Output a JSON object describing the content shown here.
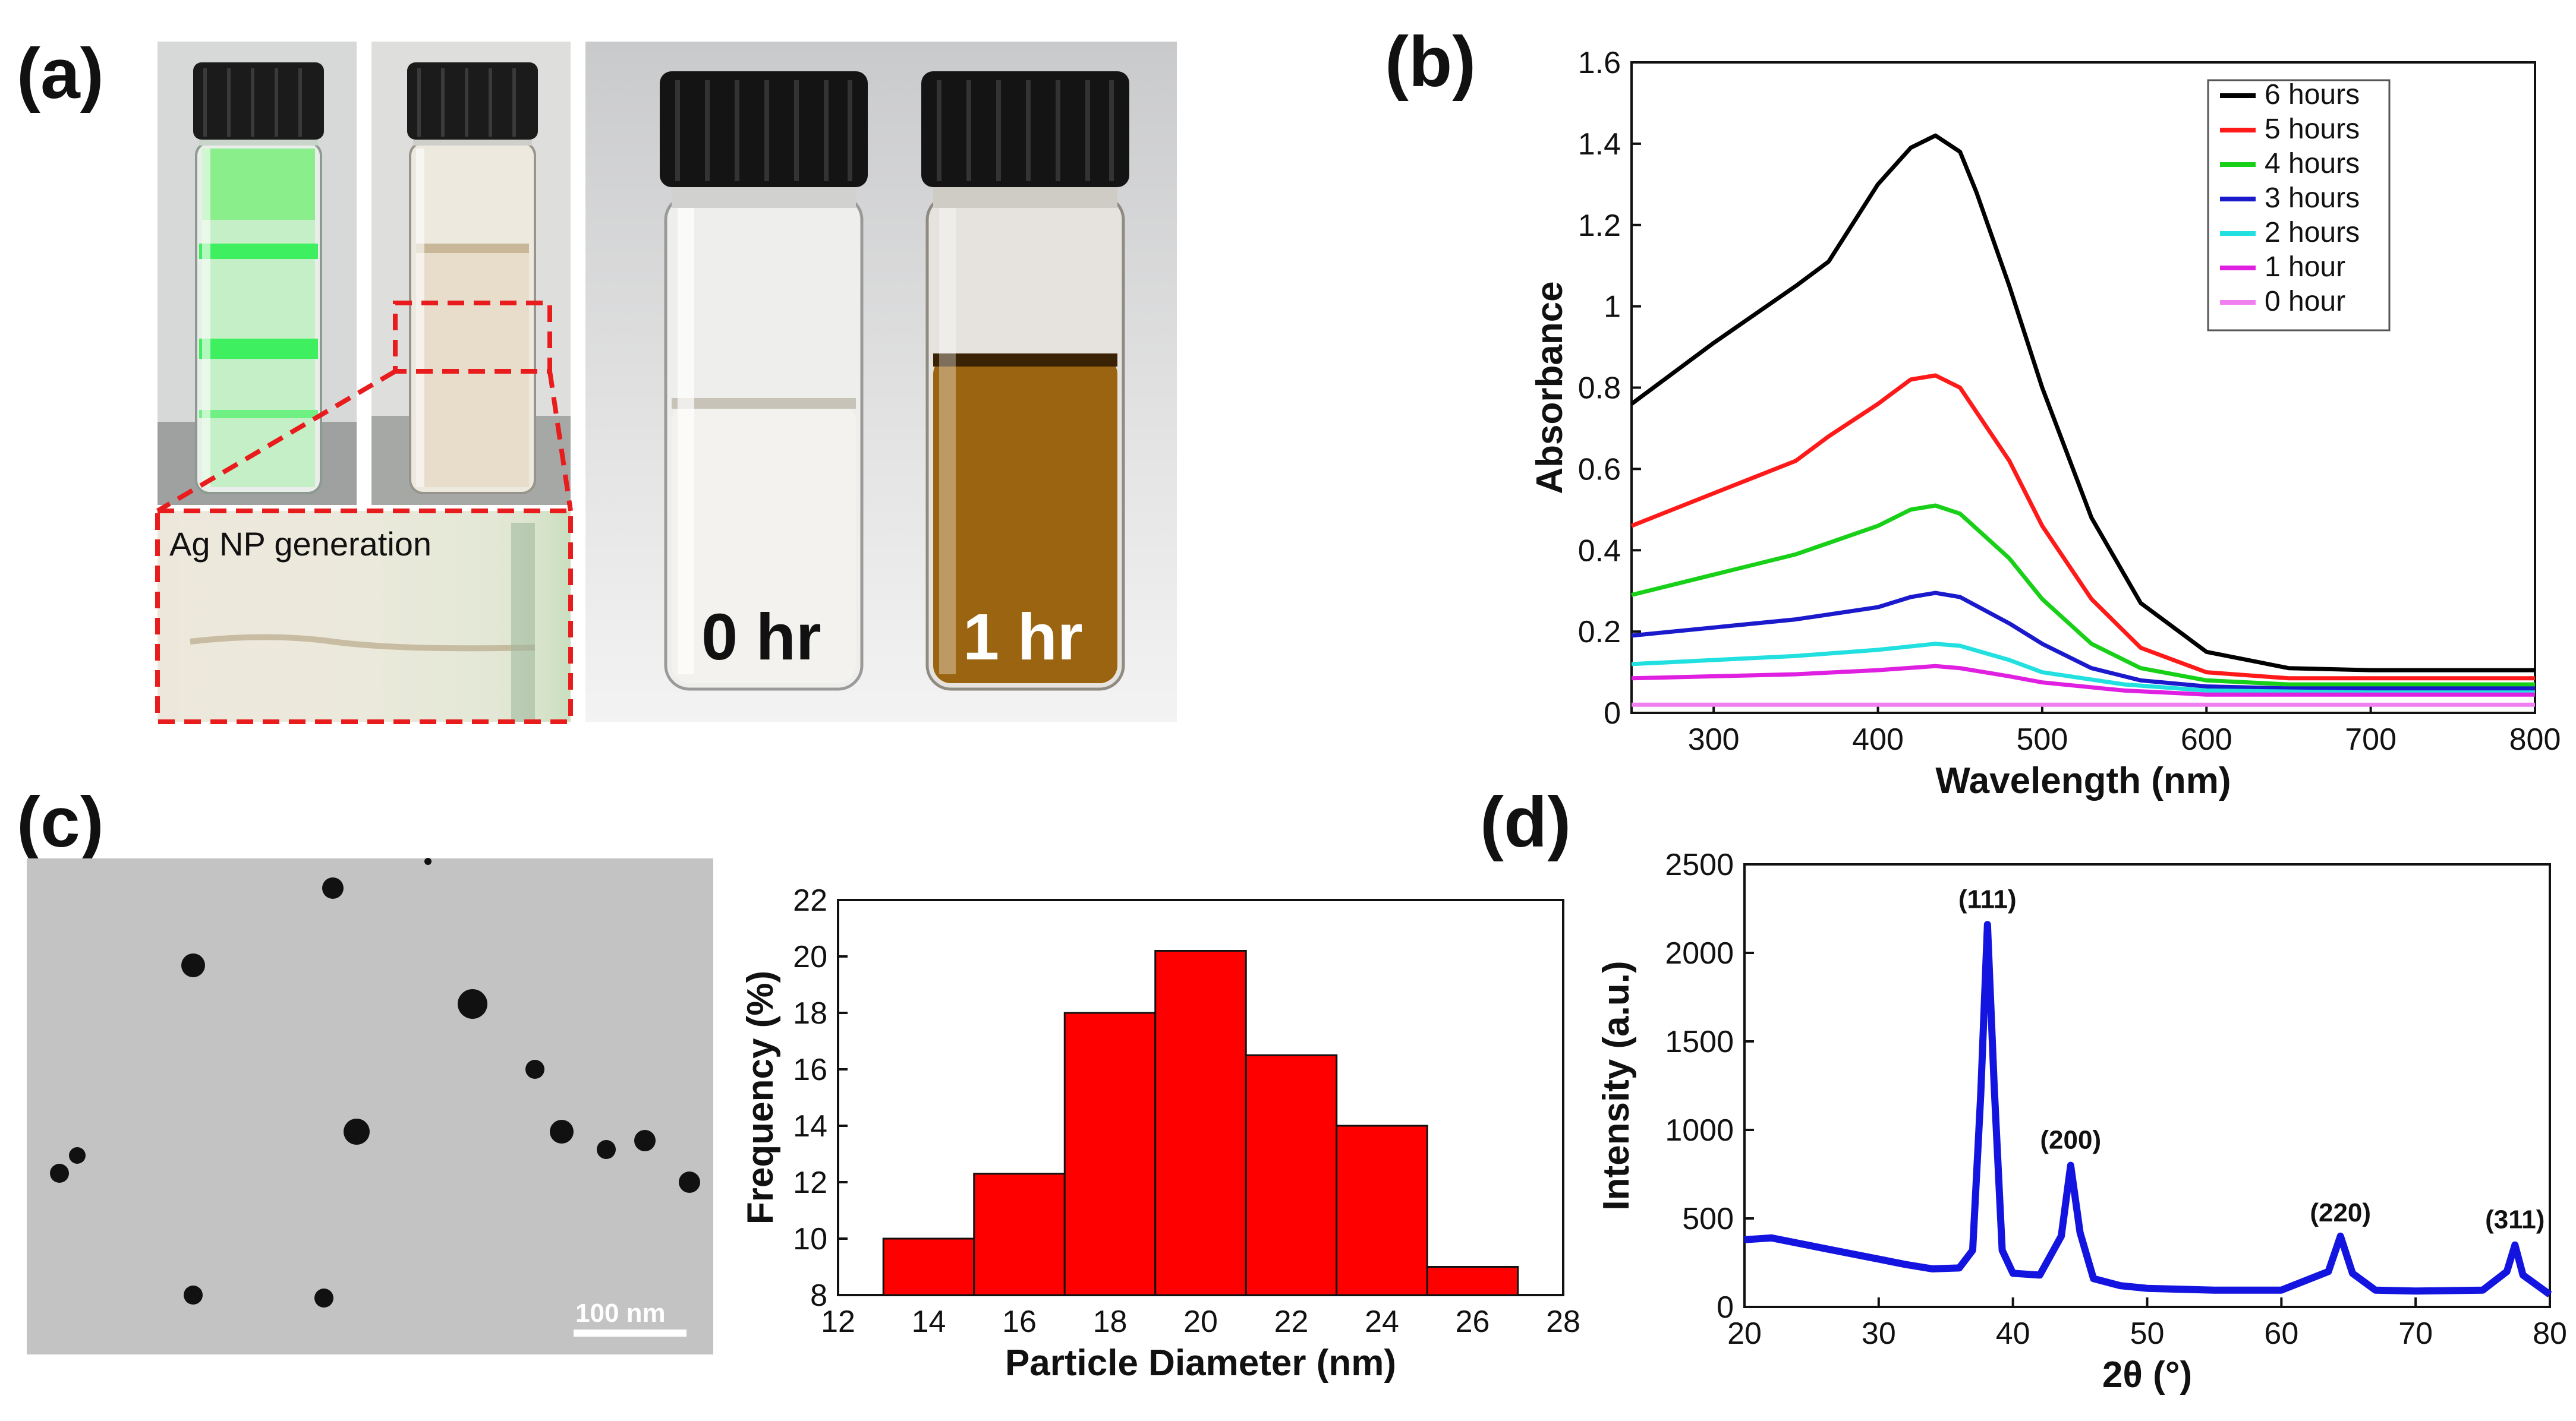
{
  "panels": {
    "a": {
      "label": "(a)",
      "inset_text": "Ag NP generation",
      "vial_labels": [
        "0 hr",
        "1 hr"
      ]
    },
    "b": {
      "label": "(b)"
    },
    "c": {
      "label": "(c)",
      "scale_bar": "100 nm"
    },
    "d": {
      "label": "(d)"
    }
  },
  "colors": {
    "series": [
      "#000000",
      "#ff1a1a",
      "#18d018",
      "#1a1acc",
      "#22e0e0",
      "#e020e0",
      "#f080f0"
    ],
    "histogram_fill": "#ff0000",
    "xrd_line": "#1414e0",
    "amber": "#9a6410",
    "green_laser": "#3ef060",
    "dashed_red": "#e81c1c"
  },
  "chart_data": [
    {
      "panel": "b",
      "type": "line",
      "xlabel": "Wavelength (nm)",
      "ylabel": "Absorbance",
      "xlim": [
        250,
        800
      ],
      "ylim": [
        0,
        1.6
      ],
      "xticks": [
        300,
        400,
        500,
        600,
        700,
        800
      ],
      "yticks": [
        0,
        0.2,
        0.4,
        0.6,
        0.8,
        1,
        1.2,
        1.4,
        1.6
      ],
      "ytick_labels": [
        "0",
        "0.2",
        "0.4",
        "0.6",
        "0.8",
        "1",
        "1.2",
        "1.4",
        "1.6"
      ],
      "legend_position": "top-right",
      "series": [
        {
          "name": "6 hours",
          "x": [
            250,
            300,
            350,
            370,
            400,
            420,
            435,
            450,
            460,
            480,
            500,
            530,
            560,
            600,
            650,
            700,
            800
          ],
          "y": [
            0.76,
            0.91,
            1.05,
            1.11,
            1.3,
            1.39,
            1.42,
            1.38,
            1.28,
            1.05,
            0.8,
            0.48,
            0.27,
            0.15,
            0.11,
            0.105,
            0.105
          ]
        },
        {
          "name": "5 hours",
          "x": [
            250,
            300,
            350,
            370,
            400,
            420,
            435,
            450,
            480,
            500,
            530,
            560,
            600,
            650,
            700,
            800
          ],
          "y": [
            0.46,
            0.54,
            0.62,
            0.68,
            0.76,
            0.82,
            0.83,
            0.8,
            0.62,
            0.46,
            0.28,
            0.16,
            0.1,
            0.085,
            0.085,
            0.085
          ]
        },
        {
          "name": "4 hours",
          "x": [
            250,
            300,
            350,
            400,
            420,
            435,
            450,
            480,
            500,
            530,
            560,
            600,
            650,
            700,
            800
          ],
          "y": [
            0.29,
            0.34,
            0.39,
            0.46,
            0.5,
            0.51,
            0.49,
            0.38,
            0.28,
            0.17,
            0.11,
            0.08,
            0.07,
            0.07,
            0.07
          ]
        },
        {
          "name": "3 hours",
          "x": [
            250,
            300,
            350,
            400,
            420,
            435,
            450,
            480,
            500,
            530,
            560,
            600,
            650,
            700,
            800
          ],
          "y": [
            0.19,
            0.21,
            0.23,
            0.26,
            0.285,
            0.295,
            0.285,
            0.22,
            0.17,
            0.11,
            0.08,
            0.065,
            0.06,
            0.06,
            0.06
          ]
        },
        {
          "name": "2 hours",
          "x": [
            250,
            300,
            350,
            400,
            435,
            450,
            480,
            500,
            550,
            600,
            700,
            800
          ],
          "y": [
            0.12,
            0.13,
            0.14,
            0.155,
            0.17,
            0.165,
            0.13,
            0.1,
            0.07,
            0.055,
            0.05,
            0.05
          ]
        },
        {
          "name": "1 hour",
          "x": [
            250,
            300,
            350,
            400,
            435,
            450,
            480,
            500,
            550,
            600,
            700,
            800
          ],
          "y": [
            0.085,
            0.09,
            0.095,
            0.105,
            0.115,
            0.11,
            0.09,
            0.075,
            0.055,
            0.045,
            0.045,
            0.045
          ]
        },
        {
          "name": "0 hour",
          "x": [
            250,
            400,
            800
          ],
          "y": [
            0.02,
            0.02,
            0.02
          ]
        }
      ]
    },
    {
      "panel": "c",
      "type": "bar",
      "xlabel": "Particle Diameter (nm)",
      "ylabel": "Frequency (%)",
      "xlim": [
        12,
        28
      ],
      "ylim": [
        8,
        22
      ],
      "xticks": [
        12,
        14,
        16,
        18,
        20,
        22,
        24,
        26,
        28
      ],
      "yticks": [
        8,
        10,
        12,
        14,
        16,
        18,
        20,
        22
      ],
      "bins": [
        [
          13,
          15
        ],
        [
          15,
          17
        ],
        [
          17,
          19
        ],
        [
          19,
          21
        ],
        [
          21,
          23
        ],
        [
          23,
          25
        ],
        [
          25,
          27
        ]
      ],
      "values": [
        10,
        12.3,
        18,
        20.2,
        16.5,
        14,
        9
      ]
    },
    {
      "panel": "d",
      "type": "line",
      "xlabel": "2θ (°)",
      "ylabel": "Intensity (a.u.)",
      "xlim": [
        20,
        80
      ],
      "ylim": [
        0,
        2500
      ],
      "xticks": [
        20,
        30,
        40,
        50,
        60,
        70,
        80
      ],
      "yticks": [
        0,
        500,
        1000,
        1500,
        2000,
        2500
      ],
      "annotations": [
        {
          "text": "(111)",
          "x": 38.1,
          "y": 2160
        },
        {
          "text": "(200)",
          "x": 44.3,
          "y": 800
        },
        {
          "text": "(220)",
          "x": 64.4,
          "y": 390
        },
        {
          "text": "(311)",
          "x": 77.4,
          "y": 350
        }
      ],
      "x": [
        20,
        22,
        24,
        26,
        28,
        30,
        32,
        34,
        36,
        37,
        37.6,
        38.1,
        38.6,
        39.2,
        40,
        42,
        43.6,
        44.3,
        45,
        46,
        48,
        50,
        55,
        60,
        63.5,
        64.4,
        65.3,
        67,
        70,
        75,
        76.8,
        77.4,
        78,
        80
      ],
      "y": [
        380,
        390,
        360,
        330,
        300,
        270,
        240,
        215,
        220,
        320,
        1200,
        2160,
        1250,
        320,
        190,
        180,
        400,
        800,
        420,
        160,
        120,
        105,
        95,
        95,
        200,
        400,
        190,
        95,
        90,
        95,
        200,
        350,
        180,
        70
      ]
    }
  ]
}
